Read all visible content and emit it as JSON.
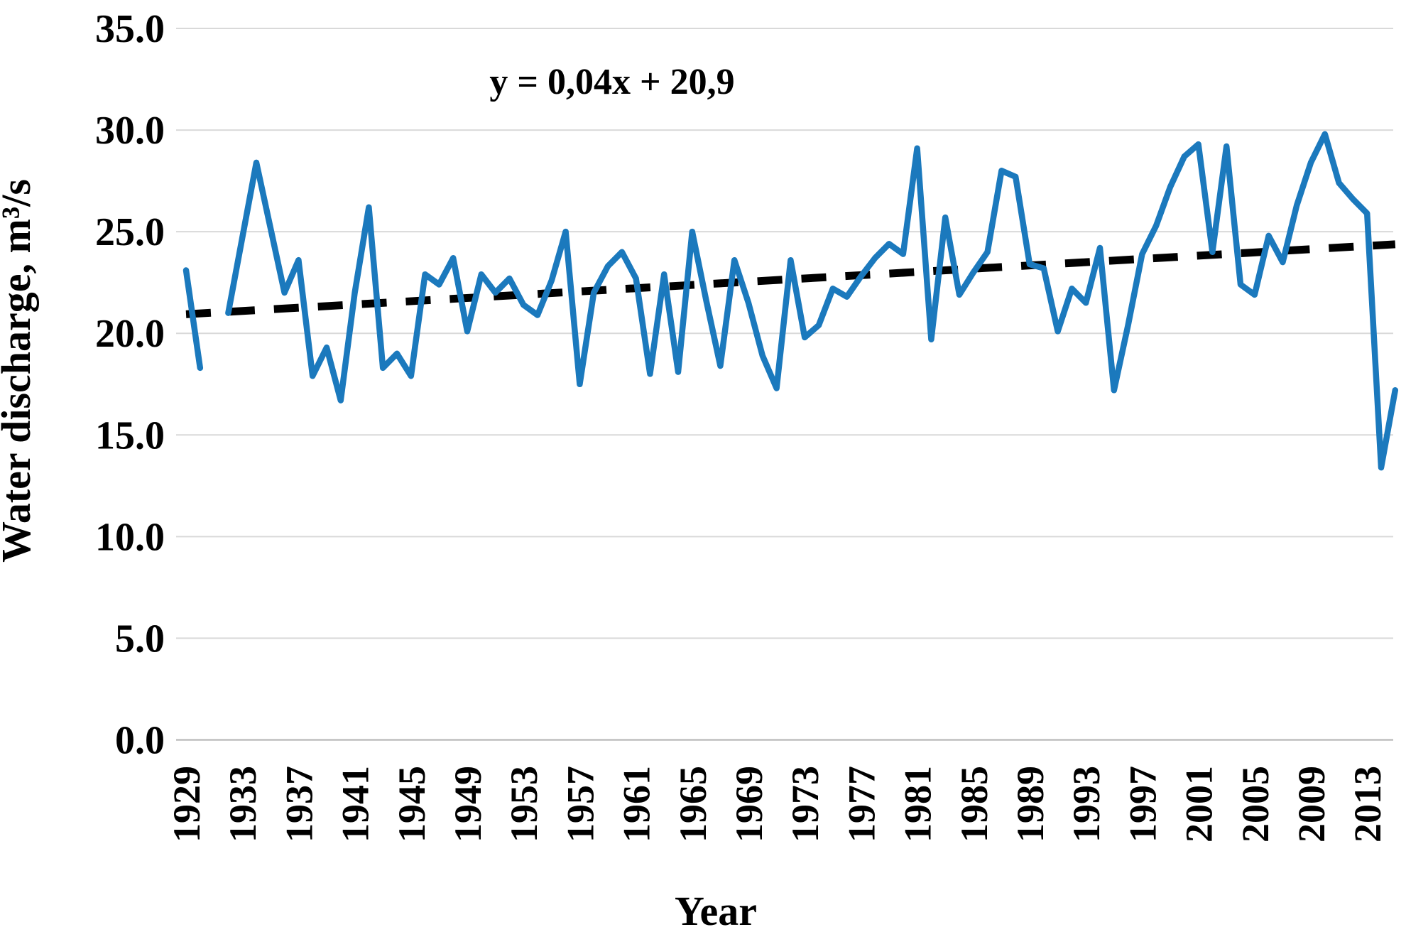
{
  "chart_data": {
    "type": "line",
    "title": "",
    "equation_annotation": "y = 0,04x + 20,9",
    "xlabel": "Year",
    "ylabel": "Water discharge, m³/s",
    "x_start": 1929,
    "x_end": 2014,
    "x_tick_labels": [
      "1929",
      "1933",
      "1937",
      "1941",
      "1945",
      "1949",
      "1953",
      "1957",
      "1961",
      "1965",
      "1969",
      "1973",
      "1977",
      "1981",
      "1985",
      "1989",
      "1993",
      "1997",
      "2001",
      "2005",
      "2009",
      "2013"
    ],
    "y_tick_labels": [
      "0.0",
      "5.0",
      "10.0",
      "15.0",
      "20.0",
      "25.0",
      "30.0",
      "35.0"
    ],
    "y_tick_values": [
      0,
      5,
      10,
      15,
      20,
      25,
      30,
      35
    ],
    "ylim": [
      0,
      35
    ],
    "grid": "horizontal",
    "legend_position": "none",
    "series": [
      {
        "name": "water-discharge",
        "color": "#1B79BD",
        "note": "null = missing year (gap in line at 1931)",
        "values": [
          23.1,
          18.3,
          null,
          21.0,
          24.7,
          28.4,
          25.2,
          22.0,
          23.6,
          17.9,
          19.3,
          16.7,
          22.0,
          26.2,
          18.3,
          19.0,
          17.9,
          22.9,
          22.4,
          23.7,
          20.1,
          22.9,
          22.0,
          22.7,
          21.4,
          20.9,
          22.6,
          25.0,
          17.5,
          22.0,
          23.3,
          24.0,
          22.7,
          18.0,
          22.9,
          18.1,
          25.0,
          21.6,
          18.4,
          23.6,
          21.5,
          18.9,
          17.3,
          23.6,
          19.8,
          20.4,
          22.2,
          21.8,
          22.8,
          23.7,
          24.4,
          23.9,
          29.1,
          19.7,
          25.7,
          21.9,
          23.0,
          24.0,
          28.0,
          27.7,
          23.4,
          23.2,
          20.1,
          22.2,
          21.5,
          24.2,
          17.2,
          20.4,
          23.9,
          25.3,
          27.2,
          28.7,
          29.3,
          24.0,
          29.2,
          22.4,
          21.9,
          24.8,
          23.5,
          26.3,
          28.4,
          29.8,
          27.4,
          26.6,
          25.9,
          13.4,
          17.2
        ]
      }
    ],
    "trendline": {
      "label": "y = 0,04x + 20,9",
      "slope": 0.04,
      "intercept": 20.9,
      "color": "#000000",
      "style": "dashed"
    },
    "colors": {
      "series_blue": "#1B79BD",
      "trend_black": "#000000",
      "gridline_gray": "#D9D9D9",
      "axis_gray": "#BFBFBF",
      "text_black": "#000000",
      "background": "#FFFFFF"
    }
  }
}
